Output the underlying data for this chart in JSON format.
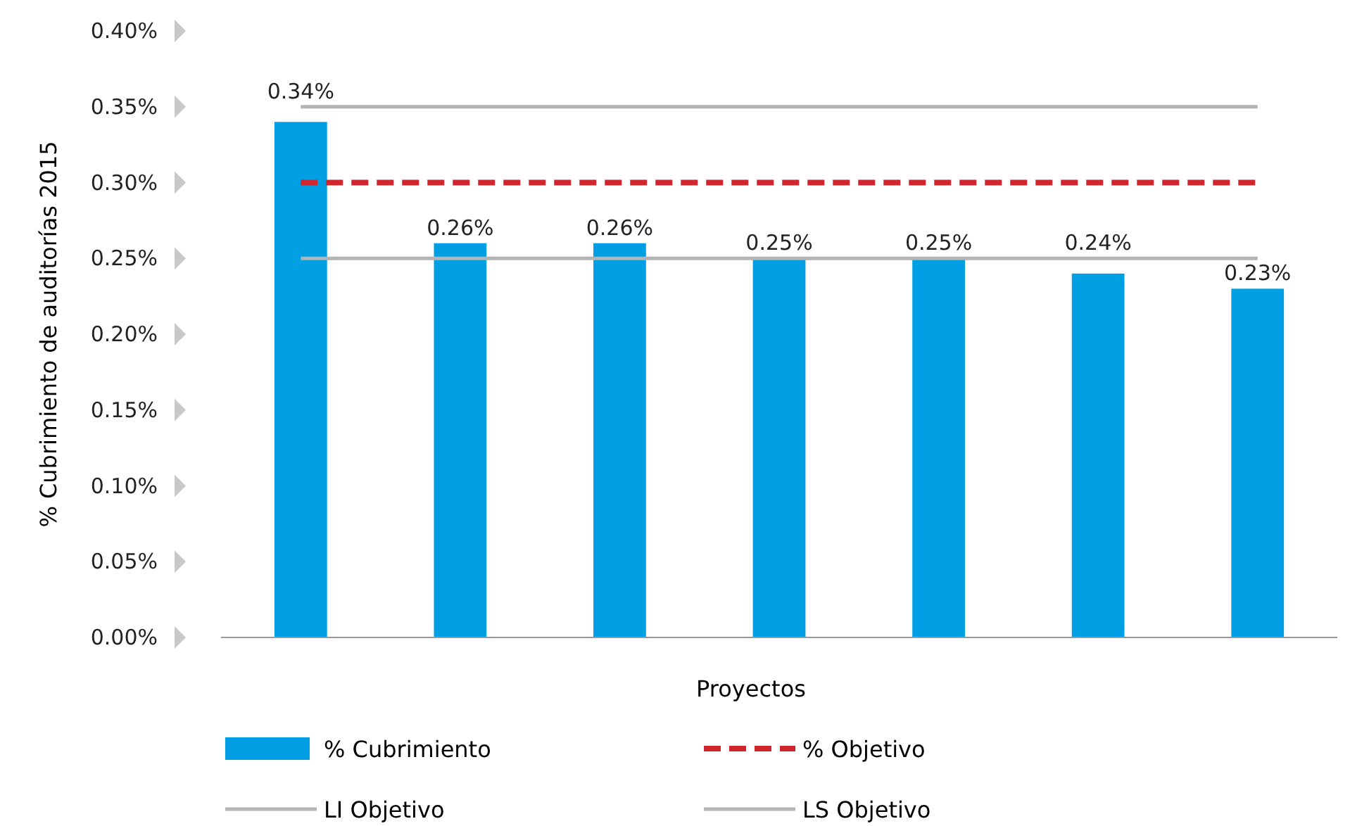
{
  "chart_data": {
    "type": "bar",
    "xlabel": "Proyectos",
    "ylabel": "% Cubrimiento de auditorías 2015",
    "categories": [
      null,
      null,
      null,
      null,
      null,
      null,
      null
    ],
    "series": [
      {
        "name": "% Cubrimiento",
        "color": "#009fe3",
        "values": [
          0.34,
          0.26,
          0.26,
          0.25,
          0.25,
          0.24,
          0.23
        ],
        "value_labels": [
          "0.34%",
          "0.26%",
          "0.26%",
          "0.25%",
          "0.25%",
          "0.24%",
          "0.23%"
        ]
      },
      {
        "name": "% Objetivo",
        "type": "line",
        "color": "#d0262d",
        "line_style": "dashed",
        "values": [
          0.3,
          0.3,
          0.3,
          0.3,
          0.3,
          0.3,
          0.3
        ]
      },
      {
        "name": "LI Objetivo",
        "type": "line",
        "color": "#b3b3b3",
        "line_style": "solid",
        "values": [
          0.25,
          0.25,
          0.25,
          0.25,
          0.25,
          0.25,
          0.25
        ]
      },
      {
        "name": "LS Objetivo",
        "type": "line",
        "color": "#b3b3b3",
        "line_style": "solid",
        "values": [
          0.35,
          0.35,
          0.35,
          0.35,
          0.35,
          0.35,
          0.35
        ]
      }
    ],
    "ylim": [
      0,
      0.4
    ],
    "yticks": [
      {
        "value": 0,
        "label": "0.00%"
      },
      {
        "value": 0.05,
        "label": "0.05%"
      },
      {
        "value": 0.1,
        "label": "0.10%"
      },
      {
        "value": 0.15,
        "label": "0.15%"
      },
      {
        "value": 0.2,
        "label": "0.20%"
      },
      {
        "value": 0.25,
        "label": "0.25%"
      },
      {
        "value": 0.3,
        "label": "0.30%"
      },
      {
        "value": 0.35,
        "label": "0.35%"
      },
      {
        "value": 0.4,
        "label": "0.40%"
      }
    ],
    "grid": false,
    "legend": "bottom"
  }
}
